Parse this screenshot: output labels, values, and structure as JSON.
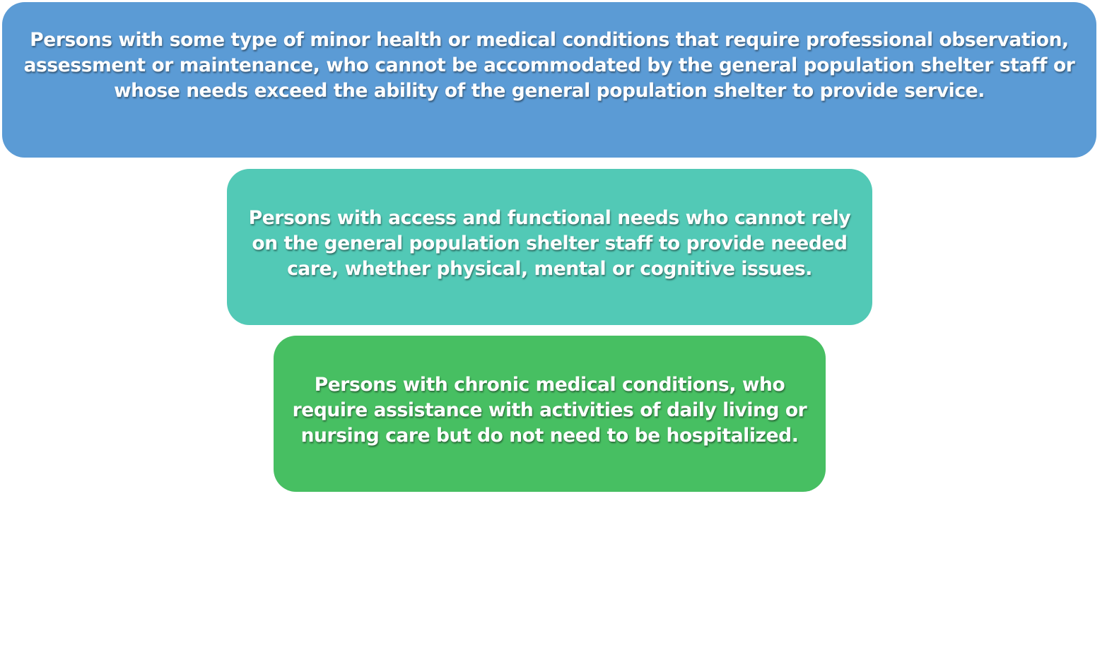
{
  "boxes": [
    {
      "text": "Persons with some type of minor health or medical conditions that require professional observation, assessment or maintenance, who cannot be accommodated by the general population shelter staff or whose needs exceed the ability of the general population shelter to provide service.",
      "color": "#5b9bd5"
    },
    {
      "text": "Persons with access and functional needs who cannot rely on the general population shelter staff to provide needed care, whether physical, mental or cognitive issues.",
      "color": "#52c9b6"
    },
    {
      "text": "Persons with chronic medical conditions, who require assistance with activities of daily living or nursing care but do not need to be hospitalized.",
      "color": "#47bf62"
    }
  ]
}
